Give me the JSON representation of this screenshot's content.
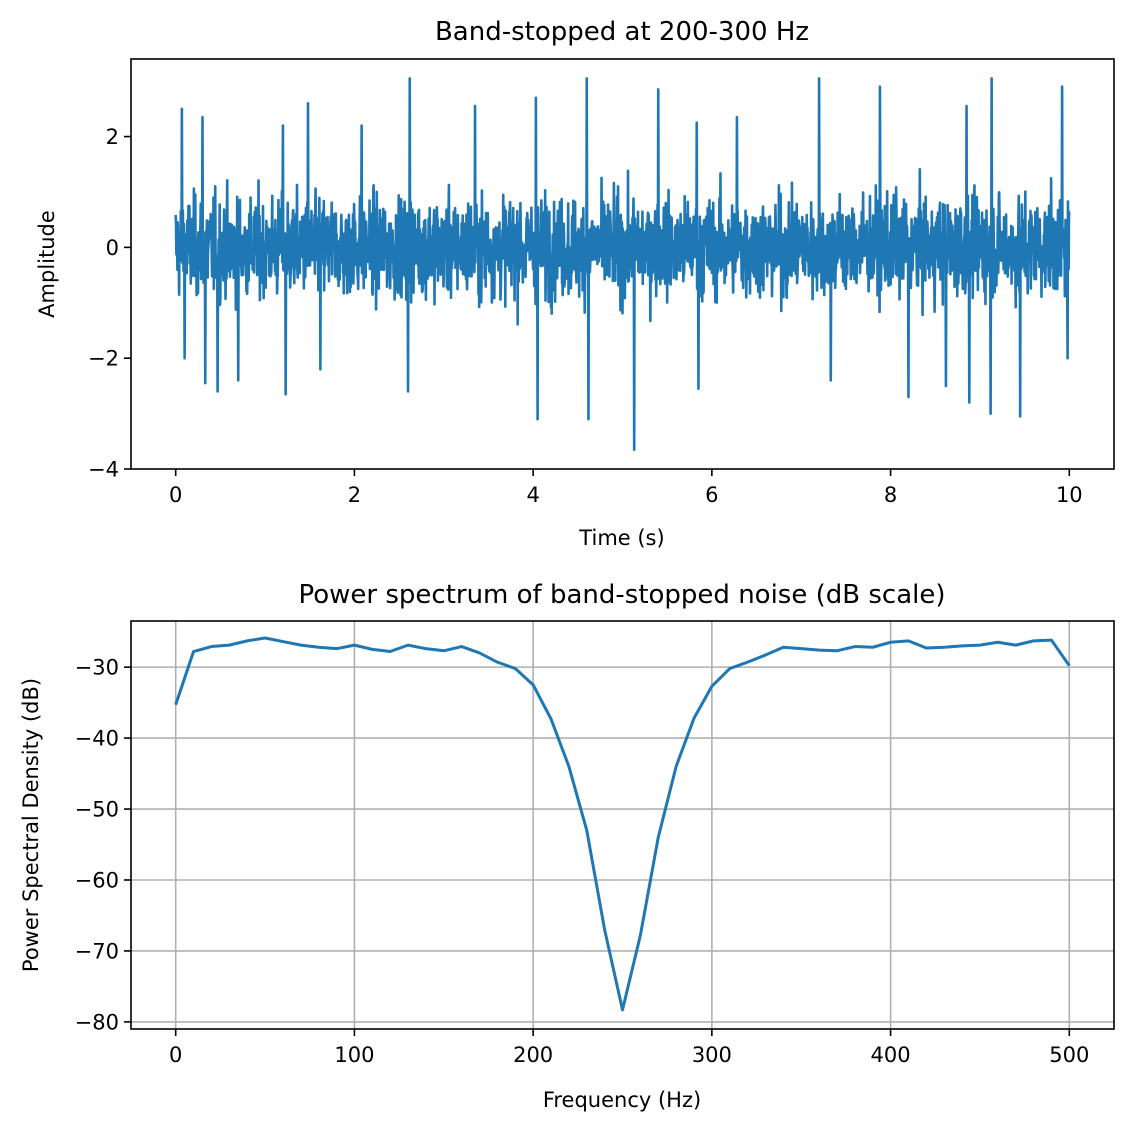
{
  "chart_data": [
    {
      "type": "line",
      "title": "Band-stopped at 200-300 Hz",
      "xlabel": "Time (s)",
      "ylabel": "Amplitude",
      "xlim": [
        -0.5,
        10.5
      ],
      "ylim": [
        -4,
        3.4
      ],
      "xticks": [
        0,
        2,
        4,
        6,
        8,
        10
      ],
      "xtick_labels": [
        "0",
        "2",
        "4",
        "6",
        "8",
        "10"
      ],
      "yticks": [
        -4,
        -2,
        0,
        2
      ],
      "ytick_labels": [
        "−4",
        "−2",
        "0",
        "2"
      ],
      "grid": false,
      "series": [
        {
          "color": "#1f77b4",
          "description_of_values": "band-stopped random noise sampled over 0-10 s, amplitude mostly within ±1.5 with peaks near ±3",
          "envelope": {
            "x_start": 0,
            "x_end": 10,
            "typical_min": -1.5,
            "typical_max": 1.3,
            "max": 3.05,
            "min": -3.65
          },
          "peaks": [
            {
              "x": 0.07,
              "y": 2.5
            },
            {
              "x": 0.1,
              "y": -2.0
            },
            {
              "x": 0.3,
              "y": 2.35
            },
            {
              "x": 0.33,
              "y": -2.45
            },
            {
              "x": 0.47,
              "y": -2.6
            },
            {
              "x": 0.7,
              "y": -2.4
            },
            {
              "x": 1.2,
              "y": 2.2
            },
            {
              "x": 1.23,
              "y": -2.65
            },
            {
              "x": 1.48,
              "y": 2.6
            },
            {
              "x": 1.62,
              "y": -2.2
            },
            {
              "x": 2.08,
              "y": 2.2
            },
            {
              "x": 2.62,
              "y": 3.05
            },
            {
              "x": 2.6,
              "y": -2.6
            },
            {
              "x": 3.35,
              "y": 2.55
            },
            {
              "x": 4.03,
              "y": 2.7
            },
            {
              "x": 4.05,
              "y": -3.1
            },
            {
              "x": 4.6,
              "y": 3.05
            },
            {
              "x": 4.62,
              "y": -3.1
            },
            {
              "x": 5.13,
              "y": -3.65
            },
            {
              "x": 5.4,
              "y": 2.85
            },
            {
              "x": 5.83,
              "y": 2.25
            },
            {
              "x": 5.85,
              "y": -2.55
            },
            {
              "x": 6.28,
              "y": 2.35
            },
            {
              "x": 7.2,
              "y": 3.05
            },
            {
              "x": 7.33,
              "y": -2.4
            },
            {
              "x": 7.88,
              "y": 2.9
            },
            {
              "x": 8.2,
              "y": -2.7
            },
            {
              "x": 8.62,
              "y": -2.5
            },
            {
              "x": 8.85,
              "y": 2.55
            },
            {
              "x": 8.88,
              "y": -2.8
            },
            {
              "x": 9.13,
              "y": 3.05
            },
            {
              "x": 9.12,
              "y": -3.0
            },
            {
              "x": 9.45,
              "y": -3.05
            },
            {
              "x": 9.92,
              "y": 2.9
            },
            {
              "x": 9.98,
              "y": -2.0
            }
          ]
        }
      ]
    },
    {
      "type": "line",
      "title": "Power spectrum of band-stopped noise (dB scale)",
      "xlabel": "Frequency (Hz)",
      "ylabel": "Power Spectral Density (dB)",
      "xlim": [
        -25,
        525
      ],
      "ylim": [
        -81,
        -23.5
      ],
      "xticks": [
        0,
        100,
        200,
        300,
        400,
        500
      ],
      "xtick_labels": [
        "0",
        "100",
        "200",
        "300",
        "400",
        "500"
      ],
      "yticks": [
        -80,
        -70,
        -60,
        -50,
        -40,
        -30
      ],
      "ytick_labels": [
        "−80",
        "−70",
        "−60",
        "−50",
        "−40",
        "−30"
      ],
      "grid": true,
      "series": [
        {
          "color": "#1f77b4",
          "x": [
            0,
            10,
            20,
            30,
            40,
            50,
            60,
            70,
            80,
            90,
            100,
            110,
            120,
            130,
            140,
            150,
            160,
            170,
            180,
            190,
            200,
            210,
            220,
            230,
            240,
            250,
            260,
            270,
            280,
            290,
            300,
            310,
            320,
            330,
            340,
            350,
            360,
            370,
            380,
            390,
            400,
            410,
            420,
            430,
            440,
            450,
            460,
            470,
            480,
            490,
            500
          ],
          "y": [
            -35.3,
            -27.8,
            -27.1,
            -26.9,
            -26.3,
            -25.9,
            -26.4,
            -26.9,
            -27.2,
            -27.4,
            -26.9,
            -27.5,
            -27.8,
            -26.9,
            -27.4,
            -27.7,
            -27.1,
            -28.0,
            -29.3,
            -30.2,
            -32.5,
            -37.3,
            -44.0,
            -53.0,
            -67.0,
            -78.3,
            -67.8,
            -54.0,
            -44.0,
            -37.2,
            -32.7,
            -30.2,
            -29.3,
            -28.3,
            -27.2,
            -27.4,
            -27.6,
            -27.7,
            -27.1,
            -27.2,
            -26.5,
            -26.3,
            -27.3,
            -27.2,
            -27.0,
            -26.9,
            -26.5,
            -26.9,
            -26.3,
            -26.2,
            -29.8
          ]
        }
      ]
    }
  ]
}
